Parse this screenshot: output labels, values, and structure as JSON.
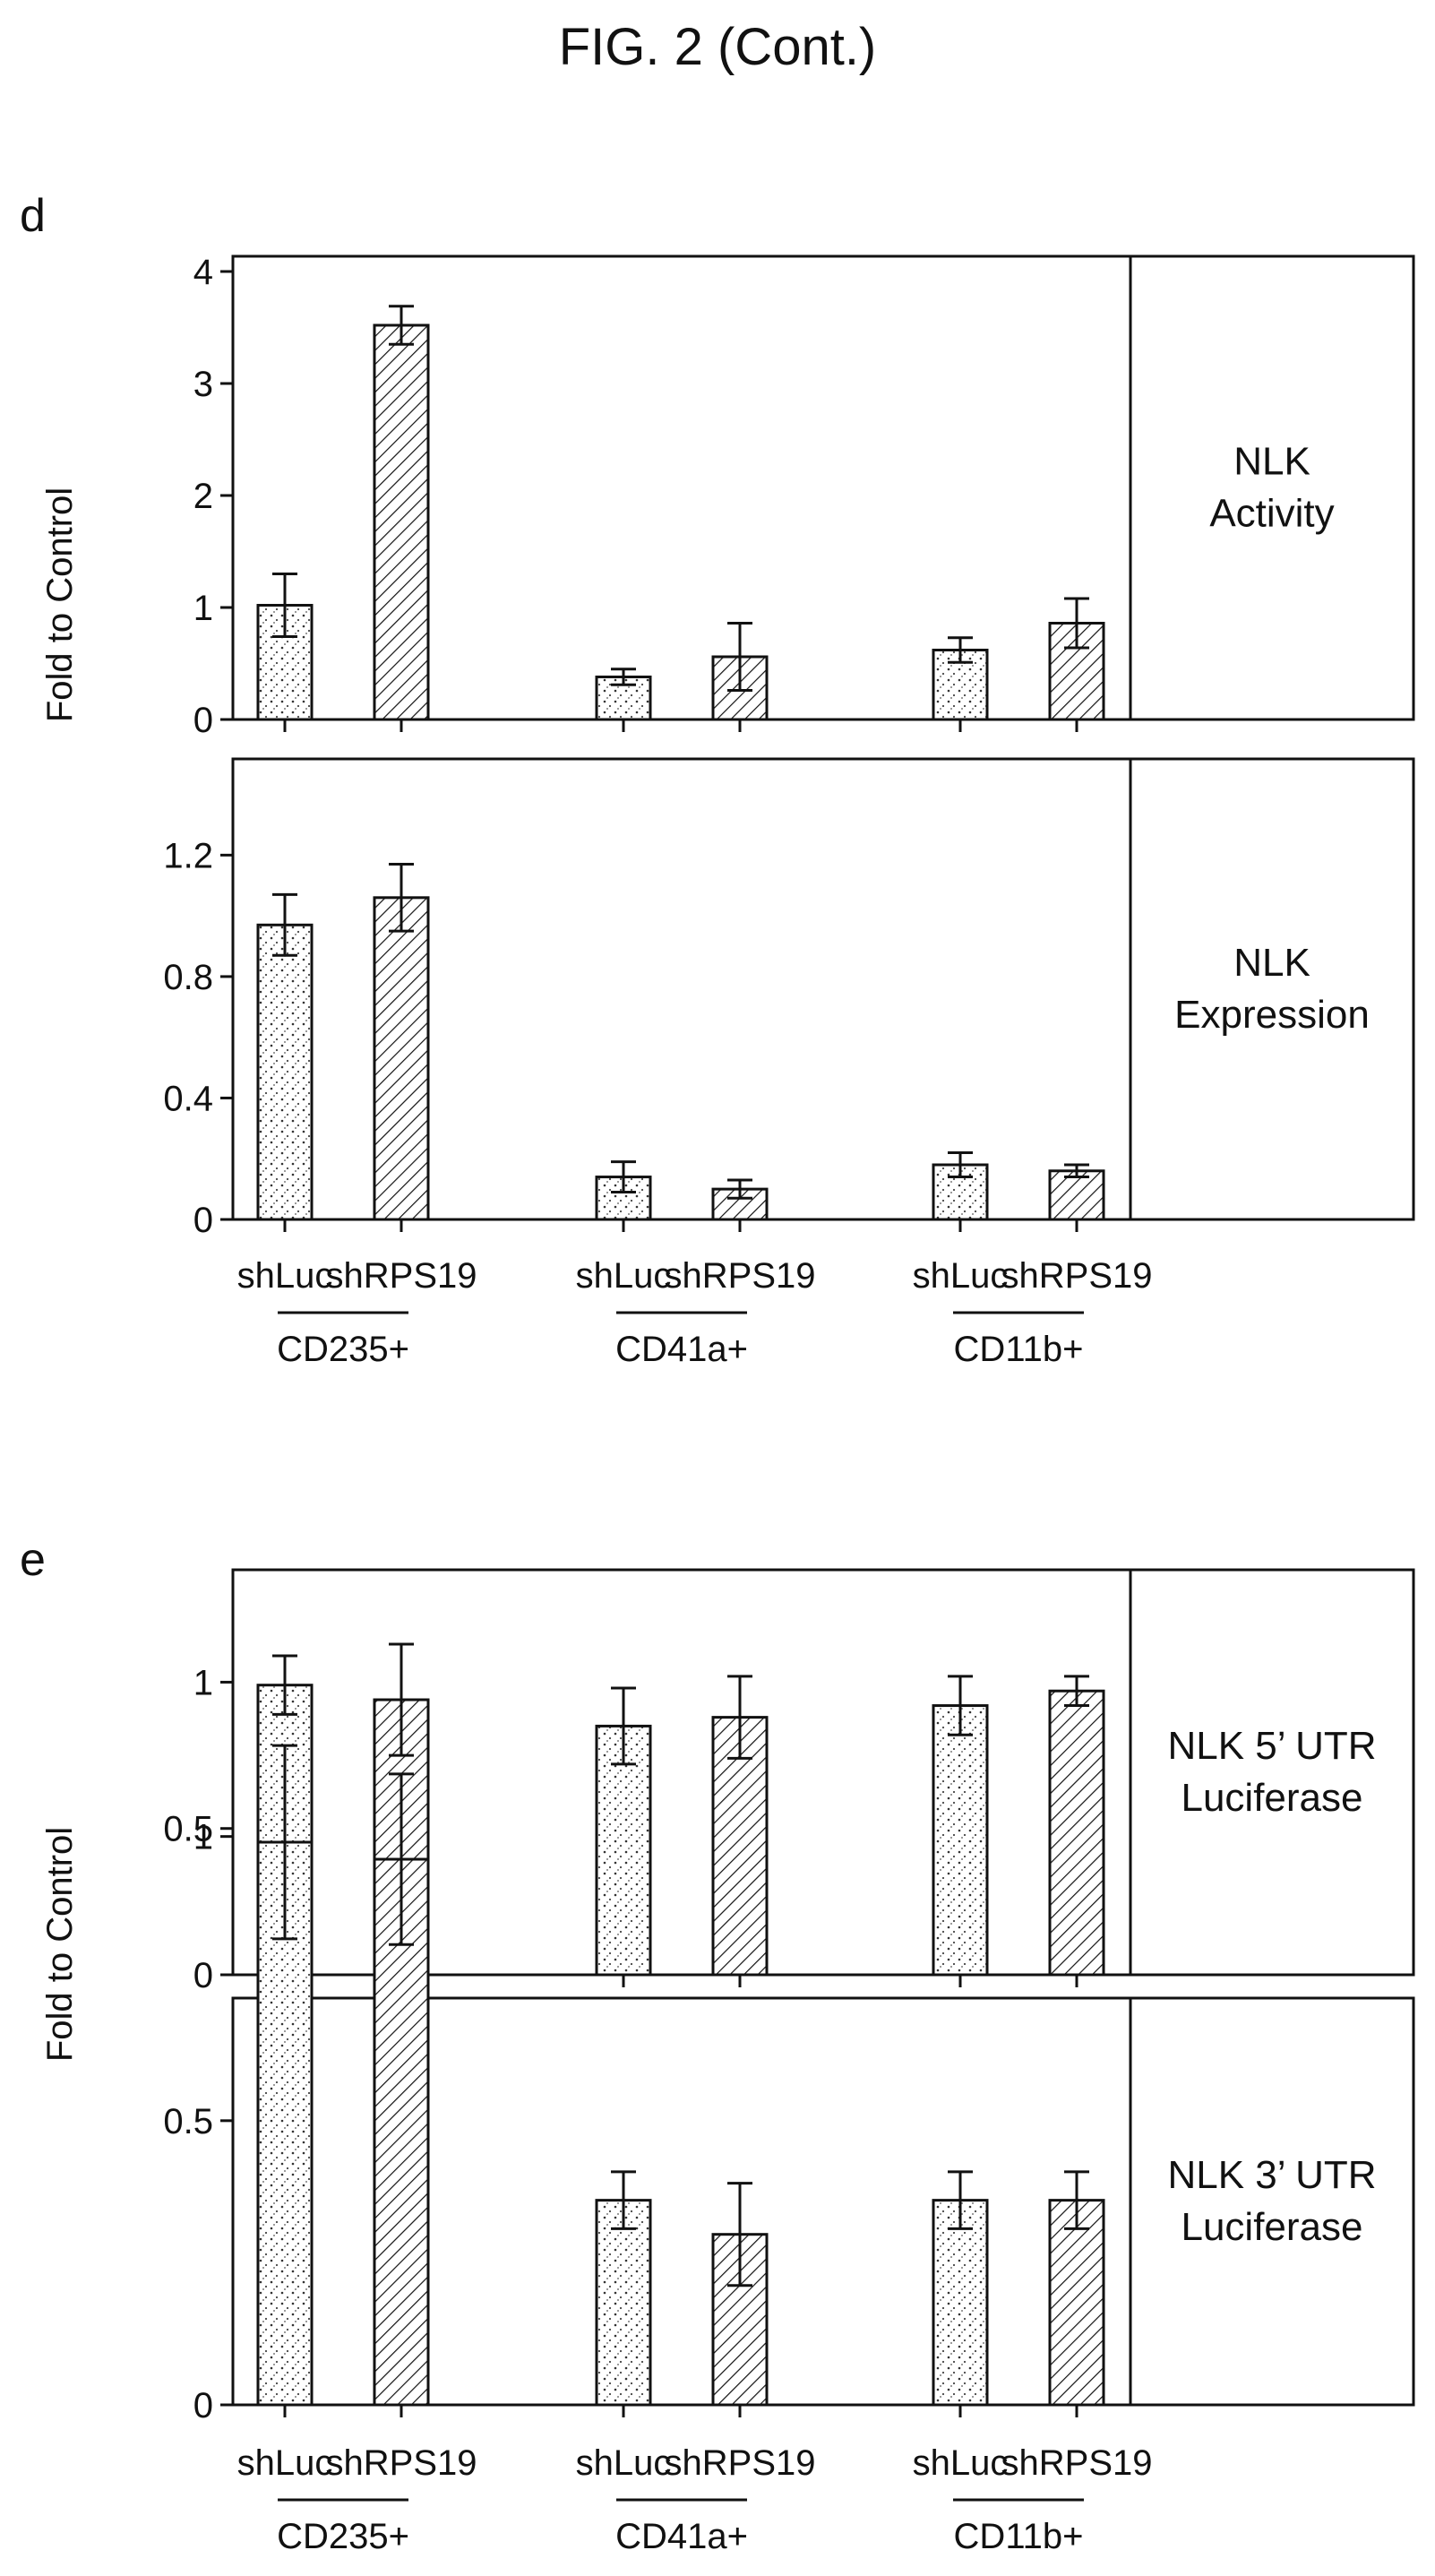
{
  "figure_title": "FIG. 2 (Cont.)",
  "panel_d": {
    "letter": "d",
    "ylabel": "Fold to Control",
    "group_labels": [
      "CD235+",
      "CD41a+",
      "CD11b+"
    ],
    "bar_labels": [
      "shLuc",
      "shRPS19",
      "shLuc",
      "shRPS19",
      "shLuc",
      "shRPS19"
    ]
  },
  "panel_e": {
    "letter": "e",
    "ylabel": "Fold to Control",
    "group_labels": [
      "CD235+",
      "CD41a+",
      "CD11b+"
    ],
    "bar_labels": [
      "shLuc",
      "shRPS19",
      "shLuc",
      "shRPS19",
      "shLuc",
      "shRPS19"
    ]
  },
  "chart_data": [
    {
      "type": "bar",
      "panel": "d",
      "title": "NLK Activity",
      "ylabel": "Fold to Control",
      "ylim": [
        0,
        4
      ],
      "yticks": [
        "0",
        "1",
        "2",
        "3",
        "4"
      ],
      "categories": [
        "shLuc",
        "shRPS19",
        "shLuc",
        "shRPS19",
        "shLuc",
        "shRPS19"
      ],
      "groups": [
        "CD235+",
        "CD41a+",
        "CD11b+"
      ],
      "values": [
        1.02,
        3.52,
        0.38,
        0.56,
        0.62,
        0.86
      ],
      "errors": [
        0.28,
        0.17,
        0.07,
        0.3,
        0.11,
        0.22
      ],
      "patterns": [
        "dots",
        "hatch",
        "dots",
        "hatch",
        "dots",
        "hatch"
      ]
    },
    {
      "type": "bar",
      "panel": "d",
      "title": "NLK Expression",
      "ylabel": "Fold to Control",
      "ylim": [
        0,
        1.4
      ],
      "yticks": [
        "0",
        "0.4",
        "0.8",
        "1.2"
      ],
      "categories": [
        "shLuc",
        "shRPS19",
        "shLuc",
        "shRPS19",
        "shLuc",
        "shRPS19"
      ],
      "groups": [
        "CD235+",
        "CD41a+",
        "CD11b+"
      ],
      "values": [
        0.97,
        1.06,
        0.14,
        0.1,
        0.18,
        0.16
      ],
      "errors": [
        0.1,
        0.11,
        0.05,
        0.03,
        0.04,
        0.02
      ],
      "patterns": [
        "dots",
        "hatch",
        "dots",
        "hatch",
        "dots",
        "hatch"
      ]
    },
    {
      "type": "bar",
      "panel": "e",
      "title": "NLK 5’ UTR Luciferase",
      "ylabel": "Fold to Control",
      "ylim": [
        0,
        1.4
      ],
      "yticks": [
        "0",
        "0.5",
        "1"
      ],
      "categories": [
        "shLuc",
        "shRPS19",
        "shLuc",
        "shRPS19",
        "shLuc",
        "shRPS19"
      ],
      "groups": [
        "CD235+",
        "CD41a+",
        "CD11b+"
      ],
      "values": [
        0.99,
        0.94,
        0.85,
        0.88,
        0.92,
        0.97
      ],
      "errors": [
        0.1,
        0.19,
        0.13,
        0.14,
        0.1,
        0.05
      ],
      "patterns": [
        "dots",
        "hatch",
        "dots",
        "hatch",
        "dots",
        "hatch"
      ]
    },
    {
      "type": "bar",
      "panel": "e",
      "title": "NLK 3’ UTR Luciferase",
      "ylabel": "Fold to Control",
      "ylim": [
        0,
        1.2
      ],
      "yticks": [
        "0",
        "0.5",
        "1"
      ],
      "categories": [
        "shLuc",
        "shRPS19",
        "shLuc",
        "shRPS19",
        "shLuc",
        "shRPS19"
      ],
      "groups": [
        "CD235+",
        "CD41a+",
        "CD11b+"
      ],
      "values": [
        0.99,
        0.96,
        0.36,
        0.3,
        0.36,
        0.36
      ],
      "errors": [
        0.17,
        0.15,
        0.05,
        0.09,
        0.05,
        0.05
      ],
      "patterns": [
        "dots",
        "hatch",
        "dots",
        "hatch",
        "dots",
        "hatch"
      ]
    }
  ]
}
